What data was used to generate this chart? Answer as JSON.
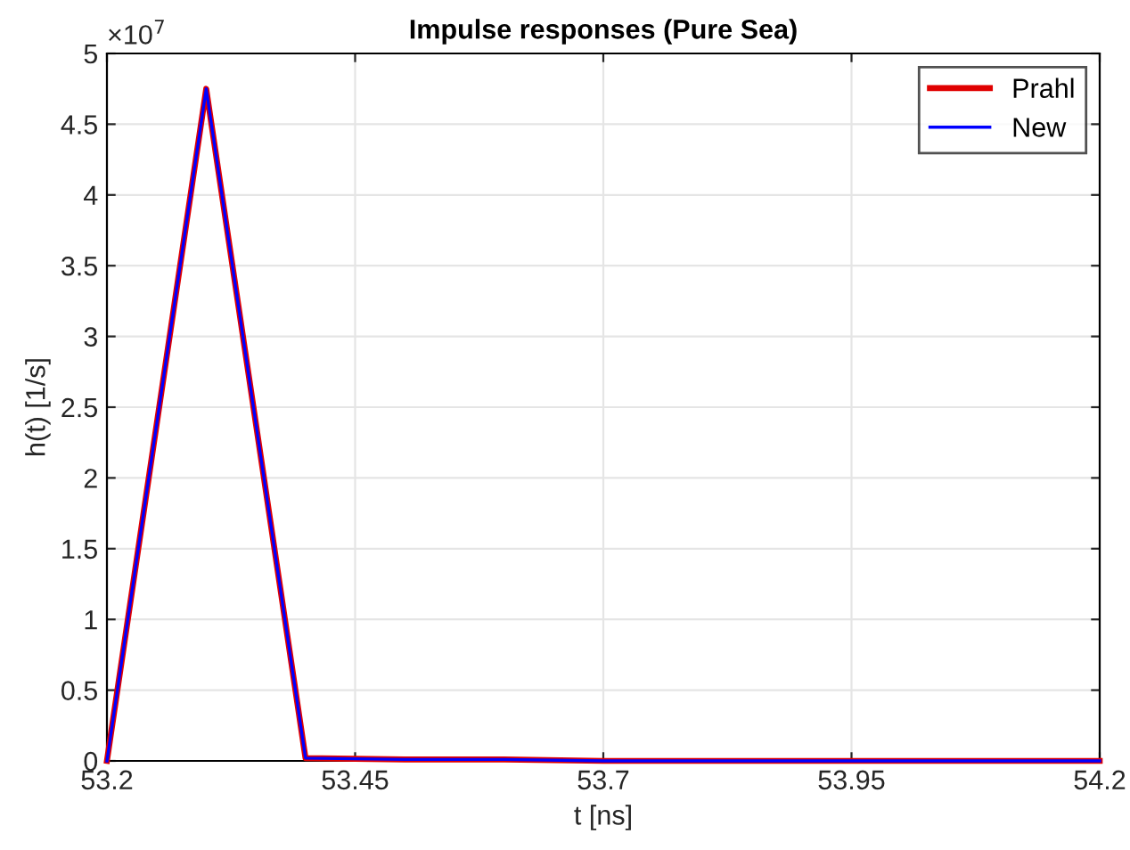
{
  "chart_data": {
    "type": "line",
    "title": "Impulse responses (Pure Sea)",
    "xlabel": "t [ns]",
    "ylabel": "h(t) [1/s]",
    "annotations": [
      "×10$^{7}$"
    ],
    "x": [
      53.2,
      53.3,
      53.4,
      53.5,
      53.6,
      53.7,
      53.8,
      53.9,
      54.0,
      54.1,
      54.2
    ],
    "series": [
      {
        "name": "Prahl",
        "color": "#e00000",
        "values": [
          0,
          4.75,
          0.02,
          0.01,
          0.01,
          0,
          0,
          0,
          0,
          0,
          0
        ]
      },
      {
        "name": "New",
        "color": "#0000ff",
        "values": [
          0,
          4.75,
          0.02,
          0.01,
          0.01,
          0,
          0,
          0,
          0,
          0,
          0
        ]
      }
    ],
    "xlim": [
      53.2,
      54.2
    ],
    "xticks": [
      53.2,
      53.45,
      53.7,
      53.95,
      54.2
    ],
    "ylim": [
      0,
      5
    ],
    "yticks": [
      0,
      0.5,
      1,
      1.5,
      2,
      2.5,
      3,
      3.5,
      4,
      4.5,
      5
    ],
    "grid": true,
    "legend": "top right"
  }
}
